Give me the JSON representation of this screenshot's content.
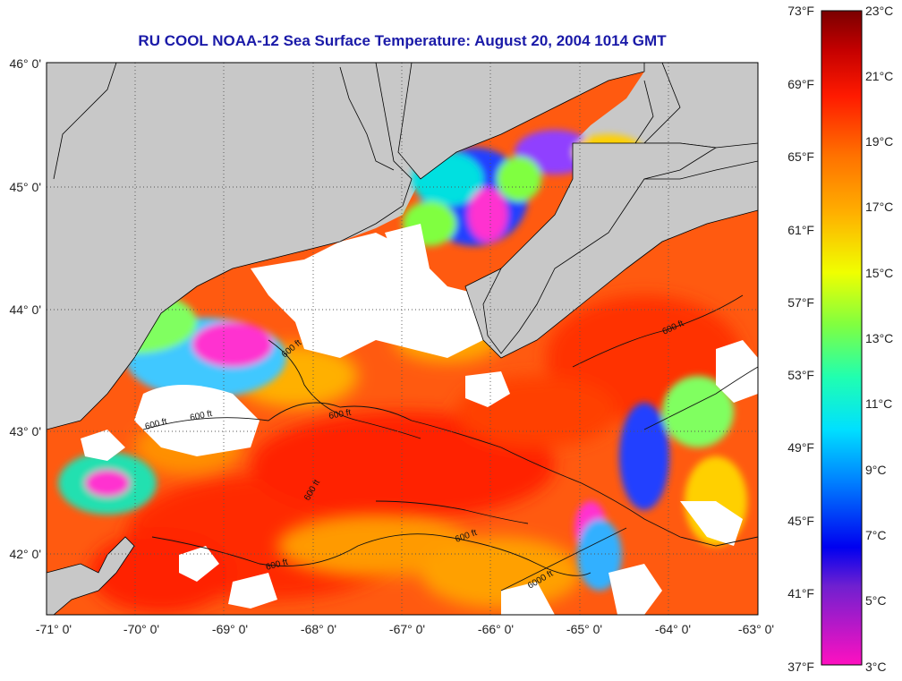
{
  "title": "RU COOL  NOAA-12  Sea Surface Temperature:  August 20, 2004 1014 GMT",
  "map": {
    "lon_range": [
      -71,
      -63
    ],
    "lat_range": [
      41.5,
      46.0
    ],
    "lon_ticks": [
      "-71° 0'",
      "-70° 0'",
      "-69° 0'",
      "-68° 0'",
      "-67° 0'",
      "-66° 0'",
      "-65° 0'",
      "-64° 0'",
      "-63° 0'"
    ],
    "lat_ticks": [
      "46° 0'",
      "45° 0'",
      "44° 0'",
      "43° 0'",
      "42° 0'"
    ],
    "contour_labels": [
      "600 ft",
      "600 ft",
      "600 ft",
      "600 ft",
      "600 ft",
      "600 ft",
      "600 ft",
      "600 ft",
      "6000 ft"
    ],
    "colors": {
      "land": "#c8c8c8",
      "cloud": "#ffffff",
      "grid": "#555555"
    }
  },
  "colorbar": {
    "fahrenheit_labels": [
      "73°F",
      "69°F",
      "65°F",
      "61°F",
      "57°F",
      "53°F",
      "49°F",
      "45°F",
      "41°F",
      "37°F"
    ],
    "celsius_labels": [
      "23°C",
      "21°C",
      "19°C",
      "17°C",
      "15°C",
      "13°C",
      "11°C",
      "9°C",
      "7°C",
      "5°C",
      "3°C"
    ],
    "range_c": [
      3,
      23
    ]
  }
}
